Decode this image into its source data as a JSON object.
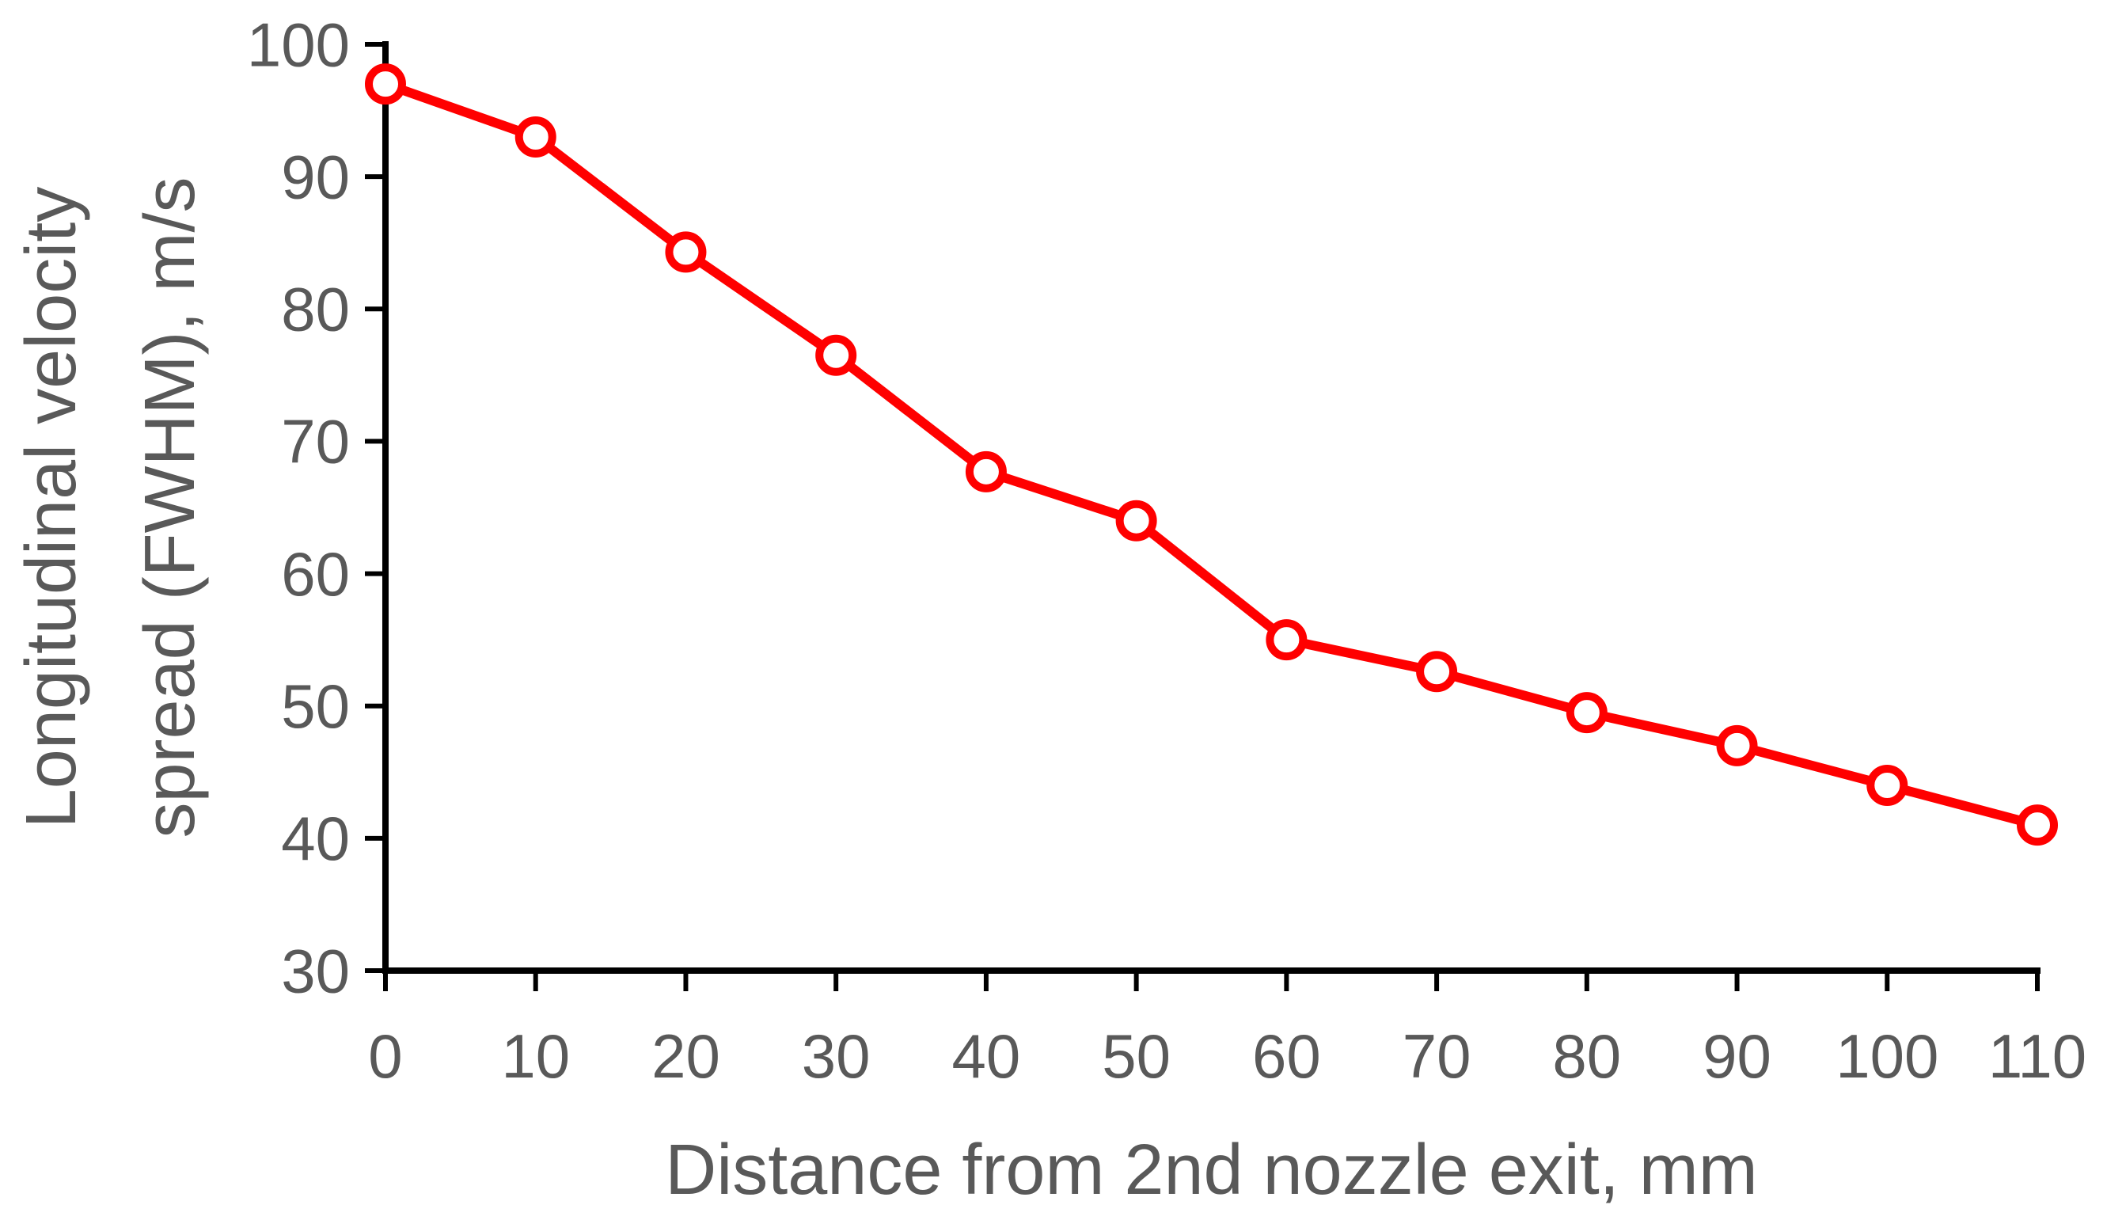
{
  "chart_data": {
    "type": "line",
    "xlabel": "Distance from 2nd nozzle exit, mm",
    "ylabel_lines": [
      "Longitudinal velocity",
      "spread (FWHM), m/s"
    ],
    "xlim": [
      0,
      110
    ],
    "ylim": [
      30,
      100
    ],
    "x_ticks": [
      0,
      10,
      20,
      30,
      40,
      50,
      60,
      70,
      80,
      90,
      100,
      110
    ],
    "y_ticks": [
      30,
      40,
      50,
      60,
      70,
      80,
      90,
      100
    ],
    "grid": false,
    "legend": false,
    "marker": "open-circle",
    "series": [
      {
        "color": "#ff0000",
        "x": [
          0,
          10,
          20,
          30,
          40,
          50,
          60,
          70,
          80,
          90,
          100,
          110
        ],
        "y": [
          97,
          93,
          84.3,
          76.5,
          67.7,
          64,
          55,
          52.6,
          49.5,
          47,
          44,
          41
        ]
      }
    ],
    "axis_color": "#000000",
    "text_color": "#595959"
  }
}
